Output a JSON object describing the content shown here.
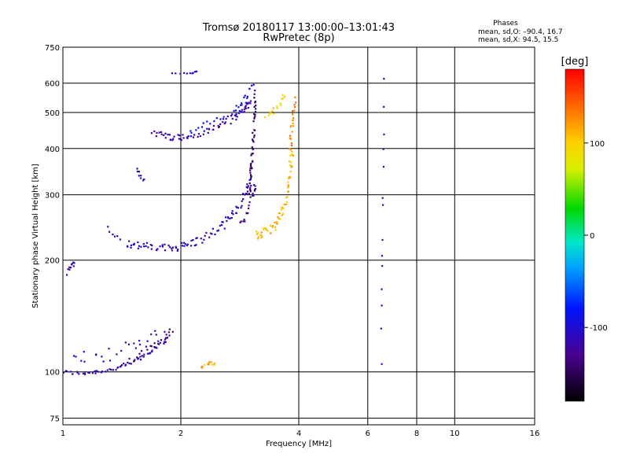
{
  "chart_data": {
    "type": "scatter",
    "title": "Tromsø 20180117 13:00:00–13:01:43",
    "subtitle": "RwPretec (8p)",
    "info": {
      "heading": "Phases",
      "line1": "mean, sd,O: –90.4, 16.7",
      "line2": "mean, sd,X:  94.5, 15.5"
    },
    "xlabel": "Frequency [MHz]",
    "ylabel": "Stationary phase Virtual Height [km]",
    "x_scale": "log",
    "y_scale": "log",
    "xlim": [
      1,
      16
    ],
    "ylim": [
      72,
      750
    ],
    "x_ticks": [
      1,
      2,
      4,
      6,
      8,
      10,
      16
    ],
    "y_ticks": [
      75,
      100,
      200,
      300,
      400,
      500,
      600,
      750
    ],
    "grid": true,
    "colorbar": {
      "label": "[deg]",
      "range": [
        -180,
        180
      ],
      "ticks": [
        100,
        0,
        -100
      ]
    },
    "series": [
      {
        "segments": [
          {
            "x": [
              1.0,
              1.1,
              1.2,
              1.3,
              1.4,
              1.5,
              1.6,
              1.7,
              1.8,
              1.85
            ],
            "y": [
              100,
              99,
              100,
              101,
              103,
              106,
              110,
              115,
              120,
              125
            ],
            "phase": -115,
            "n": 70,
            "jx": 0.012,
            "jy": 0.012
          },
          {
            "x": [
              1.05,
              1.2,
              1.4,
              1.6,
              1.8
            ],
            "y": [
              112,
              108,
              115,
              120,
              127
            ],
            "phase": -110,
            "n": 25,
            "jx": 0.035,
            "jy": 0.04
          },
          {
            "x": [
              1.5,
              1.6,
              1.7,
              1.8,
              1.9
            ],
            "y": [
              108,
              115,
              118,
              125,
              128
            ],
            "phase": -140,
            "n": 15,
            "jx": 0.02,
            "jy": 0.03
          },
          {
            "x": [
              2.25,
              2.35,
              2.45
            ],
            "y": [
              103,
              106,
              105
            ],
            "phase": 115,
            "n": 12,
            "jx": 0.01,
            "jy": 0.01
          },
          {
            "x": [
              1.03,
              1.07
            ],
            "y": [
              185,
              200
            ],
            "phase": -110,
            "n": 10,
            "jx": 0.008,
            "jy": 0.02
          },
          {
            "x": [
              1.45,
              1.6,
              1.8,
              2.0,
              2.2,
              2.5,
              2.7,
              2.9,
              3.0
            ],
            "y": [
              222,
              218,
              215,
              218,
              225,
              242,
              265,
              295,
              330
            ],
            "phase": -110,
            "n": 100,
            "jx": 0.01,
            "jy": 0.025
          },
          {
            "x": [
              1.3,
              1.35,
              1.4
            ],
            "y": [
              245,
              235,
              228
            ],
            "phase": -110,
            "n": 6,
            "jx": 0.005,
            "jy": 0.01
          },
          {
            "x": [
              1.55,
              1.6
            ],
            "y": [
              350,
              330
            ],
            "phase": -115,
            "n": 8,
            "jx": 0.008,
            "jy": 0.02
          },
          {
            "x": [
              1.7,
              1.9,
              2.1,
              2.4,
              2.7,
              2.9,
              3.0
            ],
            "y": [
              440,
              430,
              428,
              450,
              480,
              510,
              540
            ],
            "phase": -115,
            "n": 80,
            "jx": 0.012,
            "jy": 0.02
          },
          {
            "x": [
              2.1,
              2.4,
              2.7,
              2.9,
              3.05
            ],
            "y": [
              440,
              470,
              500,
              540,
              590
            ],
            "phase": -85,
            "n": 30,
            "jx": 0.01,
            "jy": 0.02
          },
          {
            "x": [
              1.9,
              2.1,
              2.2
            ],
            "y": [
              640,
              635,
              645
            ],
            "phase": -110,
            "n": 10,
            "jx": 0.004,
            "jy": 0.005
          },
          {
            "x": [
              3.0,
              3.02,
              3.05,
              3.08,
              3.1
            ],
            "y": [
              300,
              350,
              400,
              480,
              560
            ],
            "phase": -145,
            "n": 50,
            "jx": 0.006,
            "jy": 0.03
          },
          {
            "x": [
              2.85,
              2.95,
              3.05,
              3.1
            ],
            "y": [
              250,
              270,
              300,
              320
            ],
            "phase": -130,
            "n": 20,
            "jx": 0.006,
            "jy": 0.02
          },
          {
            "x": [
              3.1,
              3.3,
              3.5,
              3.7,
              3.8,
              3.85
            ],
            "y": [
              232,
              238,
              250,
              280,
              340,
              400
            ],
            "phase": 110,
            "n": 70,
            "jx": 0.01,
            "jy": 0.03
          },
          {
            "x": [
              3.8,
              3.85,
              3.9
            ],
            "y": [
              400,
              470,
              540
            ],
            "phase": 130,
            "n": 25,
            "jx": 0.008,
            "jy": 0.02
          },
          {
            "x": [
              3.3,
              3.5,
              3.7
            ],
            "y": [
              490,
              510,
              560
            ],
            "phase": 100,
            "n": 15,
            "jx": 0.01,
            "jy": 0.02
          },
          {
            "x": [
              6.5,
              6.6
            ],
            "y": [
              110,
              600
            ],
            "phase": -100,
            "n": 14,
            "jx": 0.003,
            "jy": 0.06
          }
        ]
      }
    ]
  }
}
